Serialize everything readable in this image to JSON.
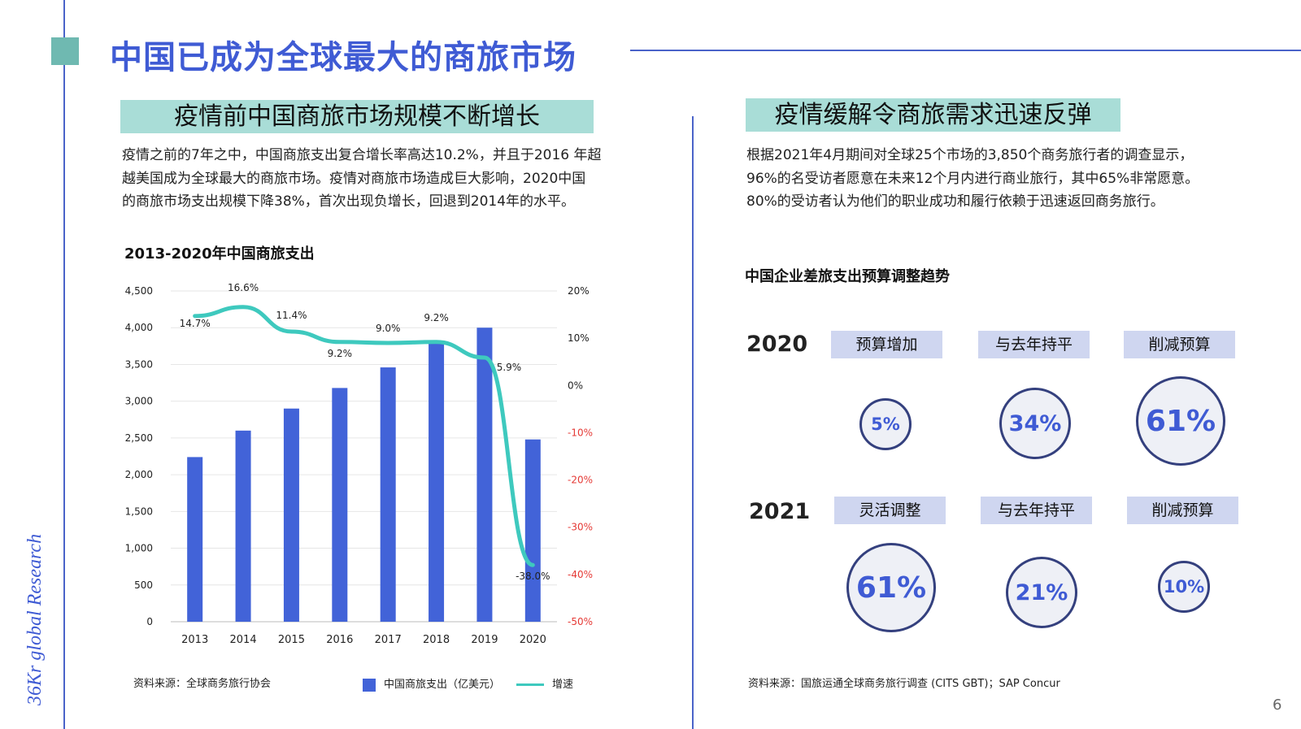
{
  "page": {
    "title": "中国已成为全球最大的商旅市场",
    "page_number": "6",
    "logo_text": "36Kr global Research"
  },
  "left": {
    "heading": "疫情前中国商旅市场规模不断增长",
    "body_lines": [
      "疫情之前的7年之中，中国商旅支出复合增长率高达10.2%，并且于2016 年超",
      "越美国成为全球最大的商旅市场。疫情对商旅市场造成巨大影响，2020中国",
      "的商旅市场支出规模下降38%，首次出现负增长，回退到2014年的水平。"
    ],
    "chart_title": "2013-2020年中国商旅支出",
    "source": "资料来源：全球商务旅行协会",
    "legend_bar": "中国商旅支出（亿美元）",
    "legend_line": "增速"
  },
  "right": {
    "heading": "疫情缓解令商旅需求迅速反弹",
    "body_lines": [
      "根据2021年4月期间对全球25个市场的3,850个商务旅行者的调查显示，",
      "96%的名受访者愿意在未来12个月内进行商业旅行，其中65%非常愿意。",
      "80%的受访者认为他们的职业成功和履行依赖于迅速返回商务旅行。"
    ],
    "budget_title": "中国企业差旅支出预算调整趋势",
    "source": "资料来源：国旅运通全球商务旅行调查 (CITS GBT)；SAP Concur",
    "rows": [
      {
        "year": "2020",
        "items": [
          {
            "label": "预算增加",
            "value": "5%"
          },
          {
            "label": "与去年持平",
            "value": "34%"
          },
          {
            "label": "削减预算",
            "value": "61%"
          }
        ]
      },
      {
        "year": "2021",
        "items": [
          {
            "label": "灵活调整",
            "value": "61%"
          },
          {
            "label": "与去年持平",
            "value": "21%"
          },
          {
            "label": "削减预算",
            "value": "10%"
          }
        ]
      }
    ]
  },
  "chart_data": {
    "type": "bar",
    "categories": [
      "2013",
      "2014",
      "2015",
      "2016",
      "2017",
      "2018",
      "2019",
      "2020"
    ],
    "series": [
      {
        "name": "中国商旅支出（亿美元）",
        "type": "bar",
        "axis": "left",
        "color": "#4263d8",
        "values": [
          2240,
          2600,
          2900,
          3180,
          3460,
          3800,
          4000,
          2480
        ]
      },
      {
        "name": "增速",
        "type": "line",
        "axis": "right",
        "color": "#3ec9be",
        "values": [
          14.7,
          16.6,
          11.4,
          9.2,
          9.0,
          9.2,
          5.9,
          -38.0
        ]
      }
    ],
    "line_labels": [
      "14.7%",
      "16.6%",
      "11.4%",
      "9.2%",
      "9.0%",
      "9.2%",
      "5.9%",
      "-38.0%"
    ],
    "y_left": {
      "min": 0,
      "max": 4500,
      "ticks": [
        0,
        500,
        1000,
        1500,
        2000,
        2500,
        3000,
        3500,
        4000,
        4500
      ],
      "tick_labels": [
        "0",
        "500",
        "1,000",
        "1,500",
        "2,000",
        "2,500",
        "3,000",
        "3,500",
        "4,000",
        "4,500"
      ]
    },
    "y_right": {
      "min": -50,
      "max": 20,
      "ticks": [
        20,
        10,
        0,
        -10,
        -20,
        -30,
        -40,
        -50
      ],
      "tick_labels": [
        "20%",
        "10%",
        "0%",
        "-10%",
        "-20%",
        "-30%",
        "-40%",
        "-50%"
      ],
      "negative_color": "#e53935"
    },
    "grid": true,
    "legend_position": "bottom"
  }
}
